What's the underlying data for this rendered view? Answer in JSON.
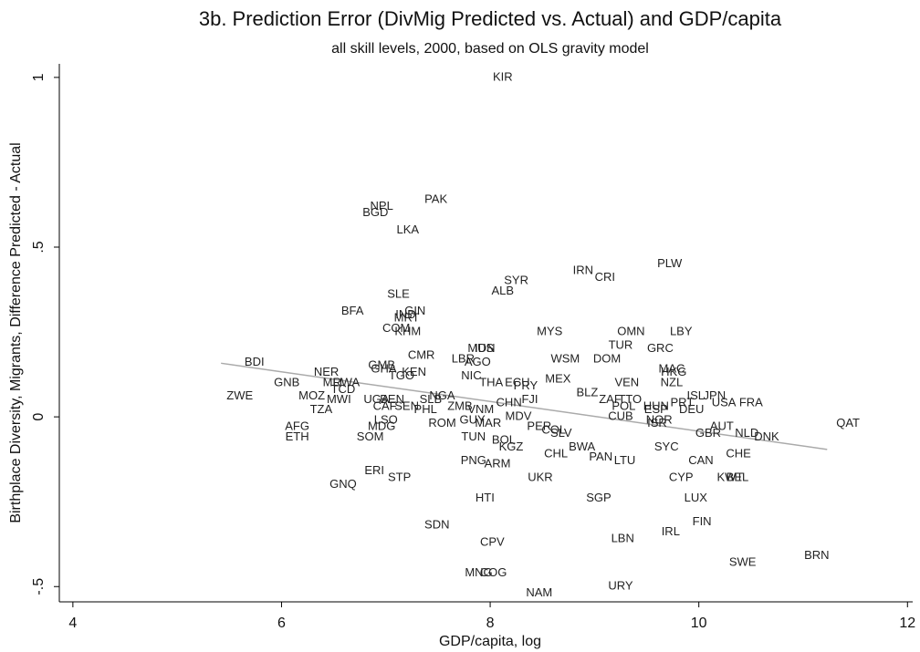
{
  "chart_data": {
    "type": "scatter",
    "title": "3b. Prediction Error (DivMig Predicted vs. Actual) and GDP/capita",
    "subtitle": "all skill levels, 2000, based on OLS gravity model",
    "xlabel": "GDP/capita, log",
    "ylabel": "Birthplace Diversity, Migrants, Difference Predicted - Actual",
    "xlim": [
      3.87,
      12.05
    ],
    "ylim": [
      -0.545,
      1.04
    ],
    "xticks": [
      4,
      6,
      8,
      10,
      12
    ],
    "yticks": [
      {
        "value": -0.5,
        "label": "-.5"
      },
      0,
      {
        "value": 0.5,
        "label": ".5"
      },
      1
    ],
    "color": "#222222",
    "fit": {
      "x": [
        5.42,
        11.23
      ],
      "y": [
        0.158,
        -0.096
      ],
      "color": "#aaaaaa"
    },
    "labels": [
      "KIR",
      "NPL",
      "BGD",
      "PAK",
      "LKA",
      "PLW",
      "IRN",
      "CRI",
      "SYR",
      "ALB",
      "SLE",
      "BFA",
      "GIN",
      "IND",
      "MRT",
      "COM",
      "KHM",
      "MYS",
      "OMN",
      "LBY",
      "TUR",
      "MUS",
      "IDN",
      "GRC",
      "CMR",
      "WSM",
      "DOM",
      "LBR",
      "AGO",
      "BDI",
      "GMB",
      "MAC",
      "GHA",
      "KEN",
      "TGO",
      "HKG",
      "NER",
      "NIC",
      "MEX",
      "THA",
      "RWA",
      "ECU",
      "GNB",
      "MLI",
      "PRY",
      "VEN",
      "NZL",
      "TCD",
      "BLZ",
      "NGA",
      "MOZ",
      "MWI",
      "UGA",
      "BEN",
      "FJI",
      "ZWE",
      "JPN",
      "ISL",
      "TTO",
      "ZAF",
      "CHN",
      "ZMB",
      "SLB",
      "CAF",
      "SEN",
      "PHL",
      "TZA",
      "PRT",
      "FRA",
      "VNM",
      "POL",
      "HUN",
      "ESP",
      "DEU",
      "USA",
      "MDV",
      "LSO",
      "GUY",
      "CUB",
      "NOR",
      "ISR",
      "MAR",
      "ROM",
      "MDG",
      "AFG",
      "ETH",
      "PER",
      "COL",
      "SLV",
      "PAN",
      "AUT",
      "QAT",
      "NLD",
      "DNK",
      "GBR",
      "SOM",
      "TUN",
      "BOL",
      "KGZ",
      "CHL",
      "BWA",
      "SYC",
      "LTU",
      "CHE",
      "CAN",
      "PNG",
      "ARM",
      "UKR",
      "ERI",
      "STP",
      "CYP",
      "KWT",
      "BEL",
      "GNQ",
      "HTI",
      "SGP",
      "LUX",
      "FIN",
      "SDN",
      "IRL",
      "LBN",
      "CPV",
      "BRN",
      "SWE",
      "MNG",
      "COG",
      "URY",
      "NAM"
    ],
    "x": [
      8.12,
      6.96,
      6.9,
      7.48,
      7.21,
      9.72,
      8.89,
      9.1,
      8.25,
      8.12,
      7.12,
      6.68,
      7.28,
      7.19,
      7.2,
      7.1,
      7.21,
      8.57,
      9.35,
      9.83,
      9.25,
      7.91,
      7.95,
      9.63,
      7.34,
      8.72,
      9.12,
      7.74,
      7.88,
      5.74,
      6.96,
      9.74,
      6.98,
      7.27,
      7.15,
      9.76,
      6.43,
      7.82,
      8.65,
      8.01,
      6.62,
      8.26,
      6.05,
      6.49,
      8.34,
      9.31,
      9.74,
      6.59,
      8.93,
      7.54,
      6.29,
      6.55,
      6.91,
      7.06,
      8.38,
      5.6,
      10.15,
      9.97,
      9.34,
      9.15,
      8.18,
      7.71,
      7.43,
      6.99,
      7.2,
      7.38,
      6.38,
      9.84,
      10.5,
      7.91,
      9.28,
      9.59,
      9.59,
      9.93,
      10.24,
      8.27,
      7.0,
      7.83,
      9.25,
      9.62,
      9.6,
      7.98,
      7.54,
      6.96,
      6.15,
      6.15,
      8.47,
      8.61,
      8.68,
      9.06,
      10.22,
      11.43,
      10.46,
      10.65,
      10.09,
      6.85,
      7.84,
      8.13,
      8.2,
      8.63,
      8.88,
      9.69,
      9.29,
      10.38,
      10.02,
      7.84,
      8.07,
      8.48,
      6.89,
      7.13,
      9.83,
      10.3,
      10.37,
      6.59,
      7.95,
      9.04,
      9.97,
      10.03,
      7.49,
      9.73,
      9.27,
      8.02,
      11.13,
      10.42,
      7.89,
      8.03,
      9.25,
      8.47
    ],
    "y": [
      1.0,
      0.62,
      0.6,
      0.64,
      0.55,
      0.45,
      0.43,
      0.41,
      0.4,
      0.37,
      0.36,
      0.31,
      0.31,
      0.3,
      0.29,
      0.26,
      0.25,
      0.25,
      0.25,
      0.25,
      0.21,
      0.2,
      0.2,
      0.2,
      0.18,
      0.17,
      0.17,
      0.17,
      0.16,
      0.16,
      0.15,
      0.14,
      0.14,
      0.13,
      0.12,
      0.13,
      0.13,
      0.12,
      0.11,
      0.1,
      0.1,
      0.1,
      0.1,
      0.1,
      0.09,
      0.1,
      0.1,
      0.08,
      0.07,
      0.06,
      0.06,
      0.05,
      0.05,
      0.05,
      0.05,
      0.06,
      0.06,
      0.06,
      0.05,
      0.05,
      0.04,
      0.03,
      0.05,
      0.03,
      0.03,
      0.02,
      0.02,
      0.04,
      0.04,
      0.02,
      0.03,
      0.03,
      0.02,
      0.02,
      0.04,
      0.0,
      -0.01,
      -0.01,
      0.0,
      -0.01,
      -0.02,
      -0.02,
      -0.02,
      -0.03,
      -0.03,
      -0.06,
      -0.03,
      -0.04,
      -0.05,
      -0.12,
      -0.03,
      -0.02,
      -0.05,
      -0.06,
      -0.05,
      -0.06,
      -0.06,
      -0.07,
      -0.09,
      -0.11,
      -0.09,
      -0.09,
      -0.13,
      -0.11,
      -0.13,
      -0.13,
      -0.14,
      -0.18,
      -0.16,
      -0.18,
      -0.18,
      -0.18,
      -0.18,
      -0.2,
      -0.24,
      -0.24,
      -0.24,
      -0.31,
      -0.32,
      -0.34,
      -0.36,
      -0.37,
      -0.41,
      -0.43,
      -0.46,
      -0.46,
      -0.5,
      -0.52
    ]
  }
}
